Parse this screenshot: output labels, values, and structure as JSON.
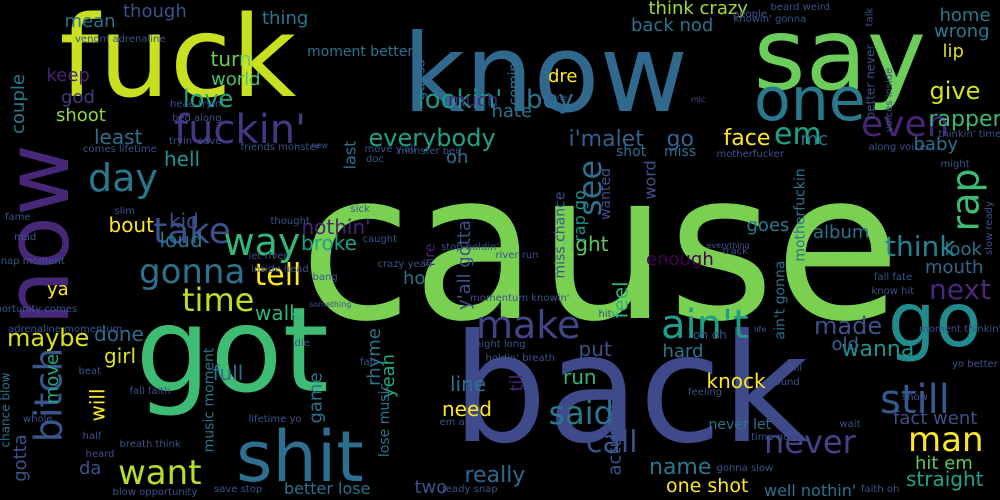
{
  "words": [
    {
      "text": "cause",
      "color": "#7ad151"
    },
    {
      "text": "back",
      "color": "#3e4a89"
    },
    {
      "text": "got",
      "color": "#3fbc73"
    },
    {
      "text": "know",
      "color": "#31688e"
    },
    {
      "text": "fuck",
      "color": "#c8e020"
    },
    {
      "text": "say",
      "color": "#6ccd5a"
    },
    {
      "text": "now",
      "color": "#472878"
    },
    {
      "text": "shit",
      "color": "#2e6e8e"
    },
    {
      "text": "go",
      "color": "#228b8d"
    },
    {
      "text": "one",
      "color": "#2a788e"
    },
    {
      "text": "fuckin'",
      "color": "#453781"
    },
    {
      "text": "bitch",
      "color": "#39568c"
    },
    {
      "text": "ain't",
      "color": "#1f9e89"
    },
    {
      "text": "make",
      "color": "#414487"
    },
    {
      "text": "take",
      "color": "#3b528b"
    },
    {
      "text": "gonna",
      "color": "#2c728e"
    },
    {
      "text": "still",
      "color": "#375a8c"
    },
    {
      "text": "even",
      "color": "#482475"
    },
    {
      "text": "way",
      "color": "#35b779"
    },
    {
      "text": "day",
      "color": "#2a788e"
    },
    {
      "text": "time",
      "color": "#bddf26"
    },
    {
      "text": "want",
      "color": "#b5de2b"
    },
    {
      "text": "said",
      "color": "#2a788e"
    },
    {
      "text": "man",
      "color": "#fde725"
    },
    {
      "text": "never",
      "color": "#414487"
    },
    {
      "text": "em",
      "color": "#1fa187"
    },
    {
      "text": "rap",
      "color": "#3dbc74"
    },
    {
      "text": "see",
      "color": "#2d708e"
    },
    {
      "text": "tell",
      "color": "#fde725"
    },
    {
      "text": "next",
      "color": "#482878"
    },
    {
      "text": "think",
      "color": "#26828e"
    },
    {
      "text": "call",
      "color": "#3b528b"
    },
    {
      "text": "everybody",
      "color": "#1fa187"
    },
    {
      "text": "lookin'",
      "color": "#1f968b"
    },
    {
      "text": "boy",
      "color": "#2c728e"
    },
    {
      "text": "love",
      "color": "#22a884"
    },
    {
      "text": "face",
      "color": "#fde725"
    },
    {
      "text": "maybe",
      "color": "#d8e219"
    },
    {
      "text": "i'malet",
      "color": "#34618d"
    },
    {
      "text": "go",
      "color": "#33638d"
    },
    {
      "text": "made",
      "color": "#3b528b"
    },
    {
      "text": "wanna",
      "color": "#1f948c"
    },
    {
      "text": "really",
      "color": "#31688e"
    },
    {
      "text": "name",
      "color": "#2a788e"
    },
    {
      "text": "one shot",
      "color": "#fde725"
    },
    {
      "text": "give",
      "color": "#d2e21b"
    },
    {
      "text": "rapper",
      "color": "#38b977"
    },
    {
      "text": "feel",
      "color": "#2fb47c"
    },
    {
      "text": "y'all gotta",
      "color": "#3b528b"
    },
    {
      "text": "turn",
      "color": "#6ece58"
    },
    {
      "text": "world",
      "color": "#4ac16d"
    },
    {
      "text": "least",
      "color": "#2d708e"
    },
    {
      "text": "hell",
      "color": "#1f948c"
    },
    {
      "text": "kid",
      "color": "#3e4c8a"
    },
    {
      "text": "bout",
      "color": "#fde725"
    },
    {
      "text": "loud",
      "color": "#2a768e"
    },
    {
      "text": "broke",
      "color": "#1fa188"
    },
    {
      "text": "nothin'",
      "color": "#482677"
    },
    {
      "text": "done",
      "color": "#2f6b8e"
    },
    {
      "text": "walk",
      "color": "#2fb47c"
    },
    {
      "text": "put",
      "color": "#3b528b"
    },
    {
      "text": "right",
      "color": "#5ec962"
    },
    {
      "text": "enough",
      "color": "#440154"
    },
    {
      "text": "knock",
      "color": "#fde725"
    },
    {
      "text": "need",
      "color": "#fde725"
    },
    {
      "text": "actually",
      "color": "#3b528b"
    },
    {
      "text": "line",
      "color": "#2c728e"
    },
    {
      "text": "run",
      "color": "#2fb47c"
    },
    {
      "text": "two",
      "color": "#3b528b"
    },
    {
      "text": "straight",
      "color": "#20a486"
    },
    {
      "text": "hit em",
      "color": "#5ec962"
    },
    {
      "text": "fact went",
      "color": "#3b528b"
    },
    {
      "text": "mouth",
      "color": "#31688e"
    },
    {
      "text": "look",
      "color": "#2c728e"
    },
    {
      "text": "hard",
      "color": "#2a788e"
    },
    {
      "text": "old",
      "color": "#31688e"
    },
    {
      "text": "girl",
      "color": "#d8e219"
    },
    {
      "text": "full",
      "color": "#2c728e"
    },
    {
      "text": "ya",
      "color": "#fde725"
    },
    {
      "text": "move",
      "color": "#22a884"
    },
    {
      "text": "will",
      "color": "#fde725"
    },
    {
      "text": "shoot",
      "color": "#90d743"
    },
    {
      "text": "keep",
      "color": "#482475"
    },
    {
      "text": "god",
      "color": "#443983"
    },
    {
      "text": "couple",
      "color": "#2a788e"
    },
    {
      "text": "mean",
      "color": "#2c728e"
    },
    {
      "text": "though",
      "color": "#3b528b"
    },
    {
      "text": "thing",
      "color": "#2a788e"
    },
    {
      "text": "hate",
      "color": "#2c728e"
    },
    {
      "text": "back nod",
      "color": "#2c728e"
    },
    {
      "text": "think crazy",
      "color": "#a0da39"
    },
    {
      "text": "home",
      "color": "#2a788e"
    },
    {
      "text": "wrong",
      "color": "#2a788e"
    },
    {
      "text": "lip",
      "color": "#d8e219"
    },
    {
      "text": "dre",
      "color": "#fde725"
    },
    {
      "text": "much",
      "color": "#482677"
    },
    {
      "text": "mc",
      "color": "#2c728e"
    },
    {
      "text": "baby",
      "color": "#2c728e"
    },
    {
      "text": "oh",
      "color": "#2c728e"
    },
    {
      "text": "ho",
      "color": "#2c728e"
    },
    {
      "text": "album",
      "color": "#2c728e"
    },
    {
      "text": "goes",
      "color": "#2a788e"
    },
    {
      "text": "til",
      "color": "#482677"
    },
    {
      "text": "yeah",
      "color": "#22a884"
    },
    {
      "text": "rhyme",
      "color": "#2c728e"
    },
    {
      "text": "game",
      "color": "#2c728e"
    },
    {
      "text": "da",
      "color": "#3b528b"
    },
    {
      "text": "gotta",
      "color": "#3b528b"
    },
    {
      "text": "moment better",
      "color": "#2c728e"
    },
    {
      "text": "comin'",
      "color": "#2c728e"
    },
    {
      "text": "guess",
      "color": "#31688e"
    },
    {
      "text": "shot",
      "color": "#2c728e"
    },
    {
      "text": "miss",
      "color": "#2c728e"
    },
    {
      "text": "rap go",
      "color": "#1f948c"
    },
    {
      "text": "word",
      "color": "#3b528b"
    },
    {
      "text": "motherfuckin",
      "color": "#2c728e"
    },
    {
      "text": "ain't gonna",
      "color": "#2c728e"
    },
    {
      "text": "wanted",
      "color": "#3b528b"
    },
    {
      "text": "fire",
      "color": "#482677"
    },
    {
      "text": "last",
      "color": "#2c728e"
    },
    {
      "text": "better lose",
      "color": "#2c728e"
    },
    {
      "text": "well nothin'",
      "color": "#2c728e"
    },
    {
      "text": "lose music",
      "color": "#2c728e"
    },
    {
      "text": "music moment",
      "color": "#2c728e"
    },
    {
      "text": "chance blow",
      "color": "#2c728e"
    },
    {
      "text": "never let",
      "color": "#2c728e"
    },
    {
      "text": "beard weird",
      "color": "#3b528b"
    },
    {
      "text": "people",
      "color": "#3b528b"
    },
    {
      "text": "venom adrenaline",
      "color": "#3b528b"
    },
    {
      "text": "head tryin'",
      "color": "#3b528b"
    },
    {
      "text": "bed along",
      "color": "#3b528b"
    },
    {
      "text": "comes lifetime",
      "color": "#3b528b"
    },
    {
      "text": "friends monster",
      "color": "#3b528b"
    },
    {
      "text": "move y'all",
      "color": "#3b528b"
    },
    {
      "text": "monster bed",
      "color": "#3b528b"
    },
    {
      "text": "mine",
      "color": "#3b528b"
    },
    {
      "text": "mic",
      "color": "#3b528b"
    },
    {
      "text": "knowin' gonna",
      "color": "#3b528b"
    },
    {
      "text": "better never",
      "color": "#3b528b"
    },
    {
      "text": "talk",
      "color": "#3b528b"
    },
    {
      "text": "voices inside",
      "color": "#3b528b"
    },
    {
      "text": "thinkin' time",
      "color": "#3b528b"
    },
    {
      "text": "along voices",
      "color": "#3b528b"
    },
    {
      "text": "might",
      "color": "#3b528b"
    },
    {
      "text": "slow ready",
      "color": "#3b528b"
    },
    {
      "text": "motherfucker",
      "color": "#3b528b"
    },
    {
      "text": "fall fate",
      "color": "#3b528b"
    },
    {
      "text": "know hit",
      "color": "#3b528b"
    },
    {
      "text": "moment thinkin'",
      "color": "#3b528b"
    },
    {
      "text": "yo better",
      "color": "#3b528b"
    },
    {
      "text": "show",
      "color": "#3b528b"
    },
    {
      "text": "life",
      "color": "#3b528b"
    },
    {
      "text": "pill",
      "color": "#3b528b"
    },
    {
      "text": "around",
      "color": "#3b528b"
    },
    {
      "text": "wait",
      "color": "#3b528b"
    },
    {
      "text": "time go",
      "color": "#3b528b"
    },
    {
      "text": "gonna slow",
      "color": "#3b528b"
    },
    {
      "text": "faith oh",
      "color": "#3b528b"
    },
    {
      "text": "ready snap",
      "color": "#3b528b"
    },
    {
      "text": "save stop",
      "color": "#3b528b"
    },
    {
      "text": "blow opportunity",
      "color": "#3b528b"
    },
    {
      "text": "breath think",
      "color": "#3b528b"
    },
    {
      "text": "heard",
      "color": "#3b528b"
    },
    {
      "text": "half",
      "color": "#3b528b"
    },
    {
      "text": "whole",
      "color": "#3b528b"
    },
    {
      "text": "fall faith",
      "color": "#3b528b"
    },
    {
      "text": "beat",
      "color": "#3b528b"
    },
    {
      "text": "fan",
      "color": "#3b528b"
    },
    {
      "text": "die",
      "color": "#3b528b"
    },
    {
      "text": "night long",
      "color": "#3b528b"
    },
    {
      "text": "holdin' breath",
      "color": "#3b528b"
    },
    {
      "text": "feeling",
      "color": "#3b528b"
    },
    {
      "text": "em ain't",
      "color": "#3b528b"
    },
    {
      "text": "lifetime yo",
      "color": "#3b528b"
    },
    {
      "text": "adrenaline momentum",
      "color": "#3b528b"
    },
    {
      "text": "opportunity comes",
      "color": "#3b528b"
    },
    {
      "text": "snap moment",
      "color": "#3b528b"
    },
    {
      "text": "mad",
      "color": "#3b528b"
    },
    {
      "text": "fame",
      "color": "#3b528b"
    },
    {
      "text": "slim",
      "color": "#3b528b"
    },
    {
      "text": "let river",
      "color": "#3b528b"
    },
    {
      "text": "inside head",
      "color": "#3b528b"
    },
    {
      "text": "crazy yeah",
      "color": "#3b528b"
    },
    {
      "text": "bang",
      "color": "#3b528b"
    },
    {
      "text": "something",
      "color": "#3b528b"
    },
    {
      "text": "river run",
      "color": "#3b528b"
    },
    {
      "text": "track",
      "color": "#3b528b"
    },
    {
      "text": "everything",
      "color": "#3b528b"
    },
    {
      "text": "momentum knowin'",
      "color": "#3b528b"
    },
    {
      "text": "stop holdin'",
      "color": "#3b528b"
    },
    {
      "text": "caught",
      "color": "#3b528b"
    },
    {
      "text": "thought",
      "color": "#3b528b"
    },
    {
      "text": "sick",
      "color": "#3b528b"
    },
    {
      "text": "new",
      "color": "#3b528b"
    },
    {
      "text": "doc",
      "color": "#3b528b"
    },
    {
      "text": "tryin' save",
      "color": "#3b528b"
    },
    {
      "text": "miss chance",
      "color": "#3b528b"
    },
    {
      "text": "hit",
      "color": "#3b528b"
    },
    {
      "text": "oh oh",
      "color": "#3b528b"
    }
  ]
}
